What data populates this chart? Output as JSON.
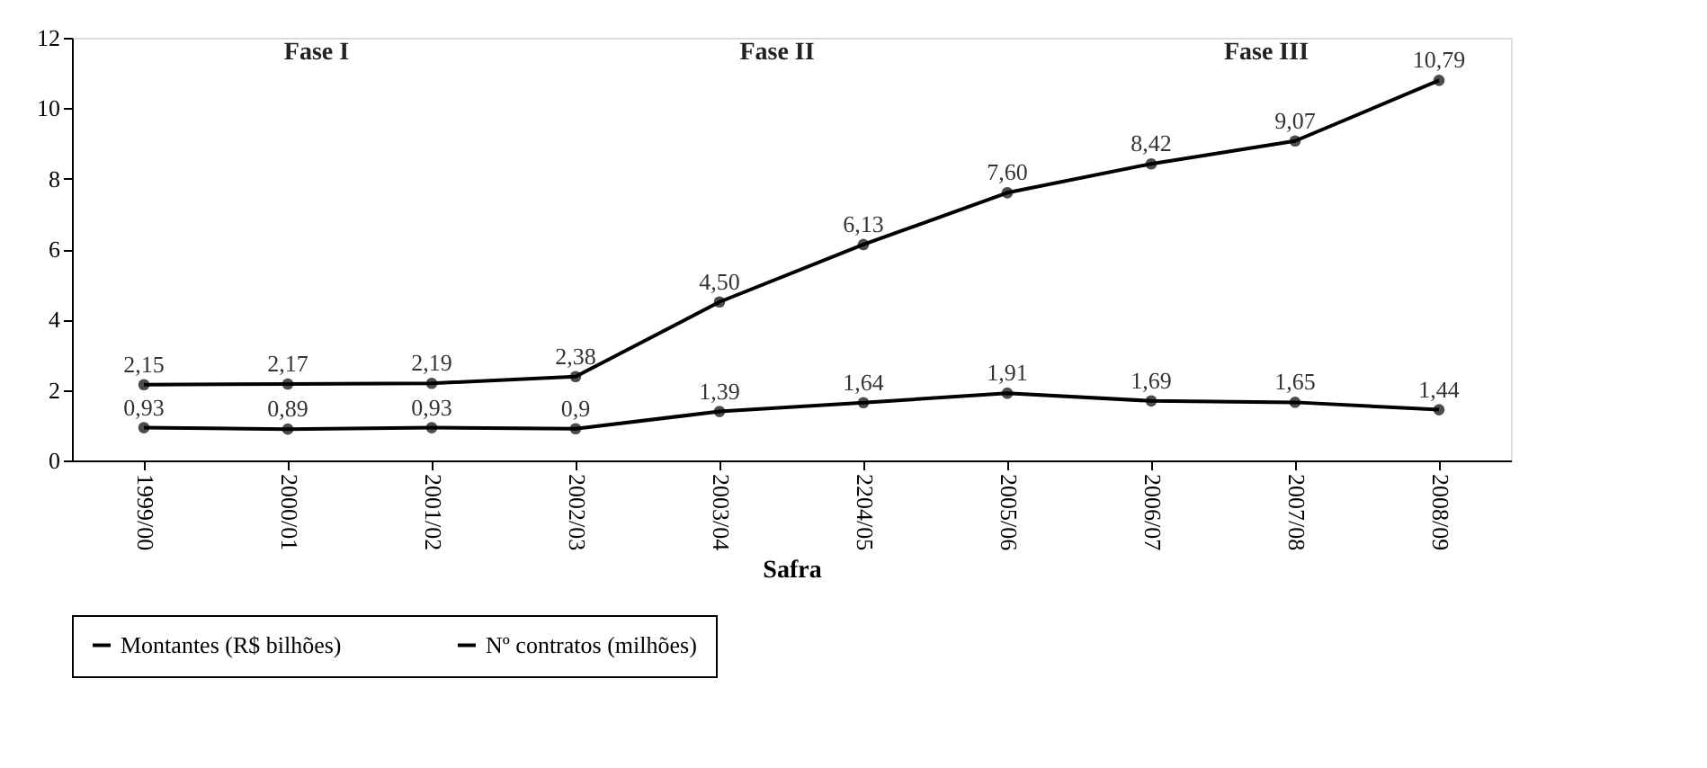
{
  "chart_data": {
    "type": "line",
    "xlabel": "Safra",
    "categories": [
      "1999/00",
      "2000/01",
      "2001/02",
      "2002/03",
      "2003/04",
      "2204/05",
      "2005/06",
      "2006/07",
      "2007/08",
      "2008/09"
    ],
    "series": [
      {
        "name": "Montantes (R$ bilhões)",
        "color": "#000000",
        "values": [
          2.15,
          2.17,
          2.19,
          2.38,
          4.5,
          6.13,
          7.6,
          8.42,
          9.07,
          10.79
        ],
        "value_labels": [
          "2,15",
          "2,17",
          "2,19",
          "2,38",
          "4,50",
          "6,13",
          "7,60",
          "8,42",
          "9,07",
          "10,79"
        ]
      },
      {
        "name": "Nº contratos (milhões)",
        "color": "#000000",
        "values": [
          0.93,
          0.89,
          0.93,
          0.9,
          1.39,
          1.64,
          1.91,
          1.69,
          1.65,
          1.44
        ],
        "value_labels": [
          "0,93",
          "0,89",
          "0,93",
          "0,9",
          "1,39",
          "1,64",
          "1,91",
          "1,69",
          "1,65",
          "1,44"
        ]
      }
    ],
    "ylim": [
      0,
      12
    ],
    "yticks": [
      0,
      2,
      4,
      6,
      8,
      10,
      12
    ],
    "annotations": [
      "Fase I",
      "Fase II",
      "Fase III"
    ],
    "grid": false,
    "legend": "bottom",
    "marker": "circle",
    "line_style": "solid"
  }
}
